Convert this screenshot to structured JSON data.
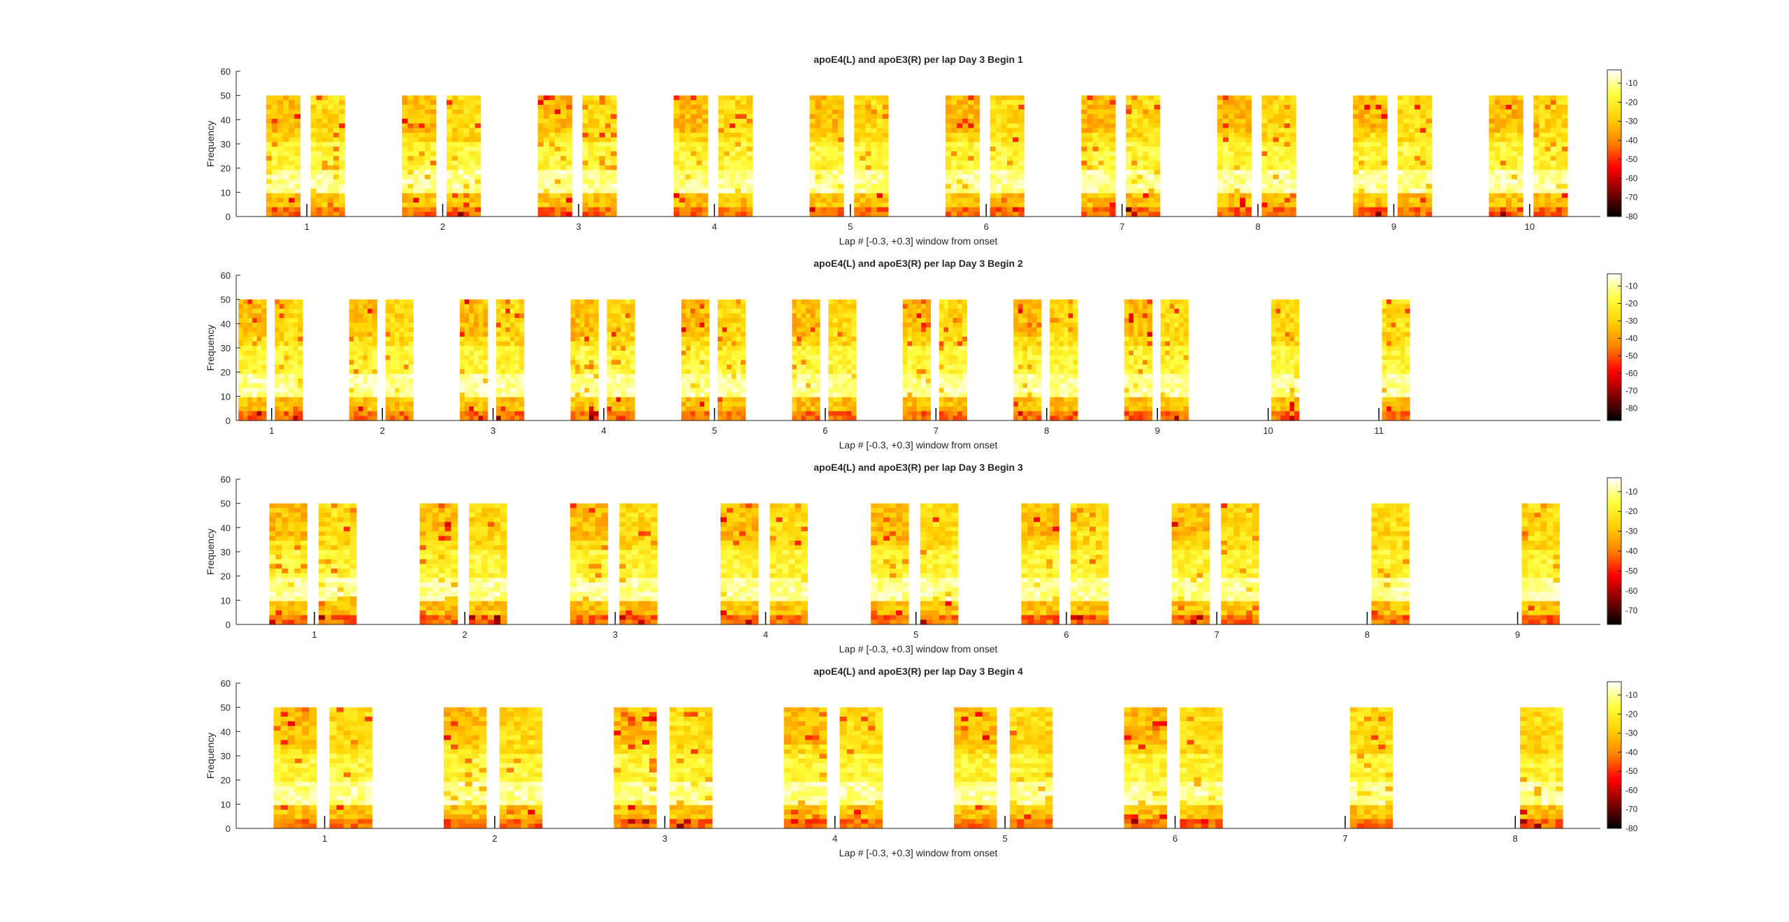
{
  "figure": {
    "background": "#ffffff",
    "colormap": "hot",
    "colormap_stops": [
      "#000000",
      "#800000",
      "#ff0000",
      "#ff8000",
      "#ffd000",
      "#ffff40",
      "#ffffff"
    ]
  },
  "chart_data": [
    {
      "type": "heatmap",
      "title": "apoE4(L) and apoE3(R) per lap Day 3 Begin 1",
      "xlabel": "Lap # [-0.3, +0.3] window from onset",
      "ylabel": "Frequency",
      "ylim": [
        0,
        60
      ],
      "yticks": [
        0,
        10,
        20,
        30,
        40,
        50,
        60
      ],
      "heatmap_freq_range": [
        0,
        50
      ],
      "laps": [
        1,
        2,
        3,
        4,
        5,
        6,
        7,
        8,
        9,
        10
      ],
      "laps_with_apoE4": [
        1,
        2,
        3,
        4,
        5,
        6,
        7,
        8,
        9,
        10
      ],
      "laps_with_apoE3": [
        1,
        2,
        3,
        4,
        5,
        6,
        7,
        8,
        9,
        10
      ],
      "xlim": [
        0.48,
        10.52
      ],
      "colorbar": {
        "ticks": [
          -10,
          -20,
          -30,
          -40,
          -50,
          -60,
          -70,
          -80
        ],
        "range": [
          -80,
          -3
        ]
      }
    },
    {
      "type": "heatmap",
      "title": "apoE4(L) and apoE3(R) per lap Day 3 Begin 2",
      "xlabel": "Lap # [-0.3, +0.3] window from onset",
      "ylabel": "Frequency",
      "ylim": [
        0,
        60
      ],
      "yticks": [
        0,
        10,
        20,
        30,
        40,
        50,
        60
      ],
      "heatmap_freq_range": [
        0,
        50
      ],
      "laps": [
        1,
        2,
        3,
        4,
        5,
        6,
        7,
        8,
        9,
        10,
        11
      ],
      "laps_with_apoE4": [
        1,
        2,
        3,
        4,
        5,
        6,
        7,
        8,
        9
      ],
      "laps_with_apoE3": [
        1,
        2,
        3,
        4,
        5,
        6,
        7,
        8,
        9,
        10,
        11
      ],
      "xlim": [
        0.68,
        13.0
      ],
      "colorbar": {
        "ticks": [
          -10,
          -20,
          -30,
          -40,
          -50,
          -60,
          -70,
          -80
        ],
        "range": [
          -87,
          -3
        ]
      }
    },
    {
      "type": "heatmap",
      "title": "apoE4(L) and apoE3(R) per lap Day 3 Begin 3",
      "xlabel": "Lap # [-0.3, +0.3] window from onset",
      "ylabel": "Frequency",
      "ylim": [
        0,
        60
      ],
      "yticks": [
        0,
        10,
        20,
        30,
        40,
        50,
        60
      ],
      "heatmap_freq_range": [
        0,
        50
      ],
      "laps": [
        1,
        2,
        3,
        4,
        5,
        6,
        7,
        8,
        9
      ],
      "laps_with_apoE4": [
        1,
        2,
        3,
        4,
        5,
        6,
        7
      ],
      "laps_with_apoE3": [
        1,
        2,
        3,
        4,
        5,
        6,
        7,
        8,
        9
      ],
      "xlim": [
        0.48,
        9.55
      ],
      "colorbar": {
        "ticks": [
          -10,
          -20,
          -30,
          -40,
          -50,
          -60,
          -70
        ],
        "range": [
          -77,
          -3
        ]
      }
    },
    {
      "type": "heatmap",
      "title": "apoE4(L) and apoE3(R) per lap Day 3 Begin 4",
      "xlabel": "Lap # [-0.3, +0.3] window from onset",
      "ylabel": "Frequency",
      "ylim": [
        0,
        60
      ],
      "yticks": [
        0,
        10,
        20,
        30,
        40,
        50,
        60
      ],
      "heatmap_freq_range": [
        0,
        50
      ],
      "laps": [
        1,
        2,
        3,
        4,
        5,
        6,
        7,
        8
      ],
      "laps_with_apoE4": [
        1,
        2,
        3,
        4,
        5,
        6
      ],
      "laps_with_apoE3": [
        1,
        2,
        3,
        4,
        5,
        6,
        7,
        8
      ],
      "xlim": [
        0.48,
        8.5
      ],
      "colorbar": {
        "ticks": [
          -10,
          -20,
          -30,
          -40,
          -50,
          -60,
          -70,
          -80
        ],
        "range": [
          -80,
          -3
        ]
      }
    }
  ]
}
